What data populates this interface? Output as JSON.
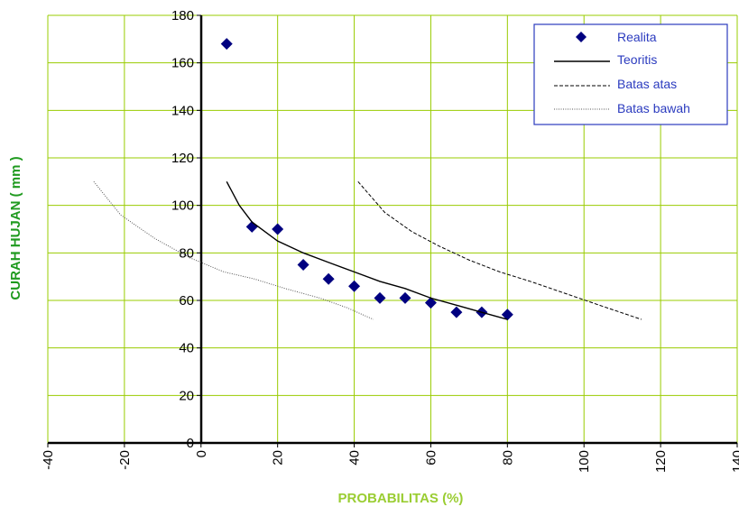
{
  "chart_data": {
    "type": "scatter",
    "xlabel": "PROBABILITAS (%)",
    "ylabel": "CURAH HUJAN ( mm )",
    "xlim": [
      -40,
      140
    ],
    "ylim": [
      0,
      180
    ],
    "x_ticks": [
      "-40",
      "-20",
      "0",
      "20",
      "40",
      "60",
      "80",
      "100",
      "120",
      "140"
    ],
    "y_ticks": [
      "0",
      "20",
      "40",
      "60",
      "80",
      "100",
      "120",
      "140",
      "160",
      "180"
    ],
    "grid": true,
    "legend_position": "top-right",
    "colors": {
      "grid": "#99cc00",
      "marker": "#000080",
      "legend_text": "#2b3bbf",
      "legend_border": "#2b3bbf",
      "xlabel": "#9acd32",
      "ylabel": "#1f9a1f"
    },
    "series": [
      {
        "name": "Realita",
        "style": "marker-diamond",
        "x": [
          6.7,
          13.3,
          20,
          26.7,
          33.3,
          40,
          46.7,
          53.3,
          60,
          66.7,
          73.3,
          80
        ],
        "y": [
          168,
          91,
          90,
          75,
          69,
          66,
          61,
          61,
          59,
          55,
          55,
          54
        ]
      },
      {
        "name": "Teoritis",
        "style": "solid",
        "x": [
          6.7,
          10,
          13.3,
          20,
          26.7,
          33.3,
          40,
          46.7,
          53.3,
          60,
          66.7,
          73.3,
          80
        ],
        "y": [
          110,
          100,
          93,
          85,
          80,
          76,
          72,
          68,
          65,
          61,
          58,
          55,
          52
        ]
      },
      {
        "name": "Batas atas",
        "style": "dashed",
        "x": [
          41,
          48,
          55,
          62,
          70,
          78,
          86,
          95,
          104,
          115
        ],
        "y": [
          110,
          97,
          89,
          83,
          77,
          72,
          68,
          63,
          58,
          52
        ]
      },
      {
        "name": "Batas bawah",
        "style": "dotted",
        "x": [
          -28,
          -21,
          -12,
          -3,
          6,
          14,
          22,
          31,
          38,
          45
        ],
        "y": [
          110,
          96,
          86,
          78,
          72,
          69,
          65,
          61,
          57,
          52
        ]
      }
    ]
  }
}
